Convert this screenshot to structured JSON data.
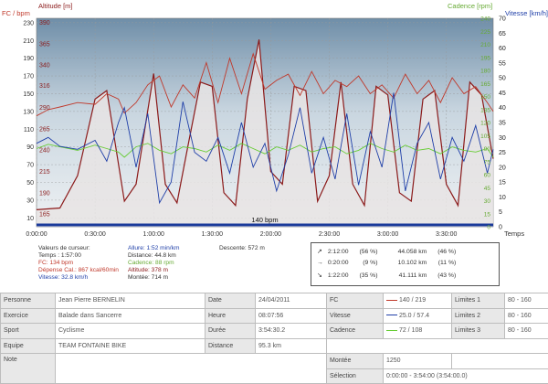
{
  "axis_titles": {
    "left_hr": "FC / bpm",
    "altitude": "Altitude [m]",
    "cadence": "Cadence [rpm]",
    "speed": "Vitesse [km/h]",
    "time": "Temps"
  },
  "chart_data": {
    "type": "line",
    "x_ticks": [
      "0:00:00",
      "0:30:00",
      "1:00:00",
      "1:30:00",
      "2:00:00",
      "2:30:00",
      "3:00:00",
      "3:30:00"
    ],
    "hr_ticks": [
      "10",
      "30",
      "50",
      "70",
      "90",
      "110",
      "130",
      "150",
      "170",
      "190",
      "210",
      "230"
    ],
    "alt_ticks": [
      "165",
      "190",
      "215",
      "240",
      "265",
      "290",
      "316",
      "340",
      "365",
      "390"
    ],
    "cad_ticks": [
      "0",
      "15",
      "30",
      "45",
      "60",
      "75",
      "90",
      "105",
      "120",
      "135",
      "150",
      "165",
      "180",
      "195",
      "210",
      "225",
      "240"
    ],
    "speed_ticks": [
      "0",
      "5",
      "10",
      "15",
      "20",
      "25",
      "30",
      "35",
      "40",
      "45",
      "50",
      "55",
      "60",
      "65",
      "70"
    ],
    "hr_reference_label": "140 bpm",
    "cursor_hr": 134,
    "series": [
      {
        "name": "FC",
        "color": "#c0392b",
        "x_h": [
          0,
          0.1,
          0.2,
          0.35,
          0.5,
          0.6,
          0.7,
          0.75,
          0.85,
          0.95,
          1.05,
          1.15,
          1.25,
          1.35,
          1.45,
          1.55,
          1.65,
          1.75,
          1.85,
          1.95,
          2.05,
          2.15,
          2.25,
          2.35,
          2.45,
          2.55,
          2.65,
          2.75,
          2.85,
          2.95,
          3.05,
          3.15,
          3.25,
          3.35,
          3.45,
          3.55,
          3.65,
          3.75,
          3.85,
          3.9
        ],
        "y": [
          125,
          132,
          135,
          140,
          138,
          150,
          144,
          128,
          140,
          160,
          170,
          135,
          160,
          145,
          185,
          140,
          190,
          150,
          195,
          155,
          165,
          172,
          148,
          175,
          150,
          165,
          158,
          170,
          150,
          160,
          145,
          172,
          150,
          165,
          140,
          168,
          150,
          158,
          140,
          130
        ]
      },
      {
        "name": "Vitesse",
        "color": "#1f3fa8",
        "x_h": [
          0,
          0.1,
          0.2,
          0.35,
          0.5,
          0.6,
          0.7,
          0.75,
          0.85,
          0.95,
          1.05,
          1.15,
          1.25,
          1.35,
          1.45,
          1.55,
          1.65,
          1.75,
          1.85,
          1.95,
          2.05,
          2.15,
          2.25,
          2.35,
          2.45,
          2.55,
          2.65,
          2.75,
          2.85,
          2.95,
          3.05,
          3.15,
          3.25,
          3.35,
          3.45,
          3.55,
          3.65,
          3.75,
          3.85,
          3.9
        ],
        "y": [
          28,
          30,
          27,
          26,
          29,
          22,
          35,
          40,
          20,
          38,
          8,
          15,
          42,
          25,
          22,
          30,
          18,
          35,
          20,
          28,
          12,
          24,
          40,
          18,
          30,
          16,
          38,
          14,
          32,
          20,
          45,
          12,
          28,
          35,
          16,
          30,
          22,
          34,
          18,
          26
        ]
      },
      {
        "name": "Cadence",
        "color": "#66cc33",
        "x_h": [
          0,
          0.1,
          0.2,
          0.35,
          0.5,
          0.6,
          0.7,
          0.75,
          0.85,
          0.95,
          1.05,
          1.15,
          1.25,
          1.35,
          1.45,
          1.55,
          1.65,
          1.75,
          1.85,
          1.95,
          2.05,
          2.15,
          2.25,
          2.35,
          2.45,
          2.55,
          2.65,
          2.75,
          2.85,
          2.95,
          3.05,
          3.15,
          3.25,
          3.35,
          3.45,
          3.55,
          3.65,
          3.75,
          3.85,
          3.9
        ],
        "y": [
          90,
          95,
          92,
          88,
          94,
          90,
          86,
          80,
          92,
          96,
          88,
          84,
          92,
          90,
          86,
          94,
          88,
          96,
          90,
          84,
          92,
          88,
          94,
          86,
          90,
          92,
          84,
          88,
          96,
          90,
          86,
          94,
          88,
          90,
          84,
          92,
          88,
          86,
          90,
          80
        ]
      },
      {
        "name": "Altitude",
        "color": "#8b1a1a",
        "x_h": [
          0,
          0.2,
          0.35,
          0.5,
          0.6,
          0.75,
          0.85,
          1.0,
          1.1,
          1.2,
          1.3,
          1.4,
          1.5,
          1.6,
          1.7,
          1.8,
          1.9,
          2.0,
          2.1,
          2.2,
          2.3,
          2.4,
          2.5,
          2.6,
          2.7,
          2.8,
          2.9,
          3.0,
          3.1,
          3.2,
          3.3,
          3.4,
          3.5,
          3.6,
          3.7,
          3.8,
          3.9
        ],
        "y": [
          170,
          172,
          210,
          300,
          310,
          180,
          200,
          330,
          200,
          178,
          250,
          320,
          315,
          190,
          175,
          300,
          370,
          215,
          200,
          315,
          310,
          180,
          210,
          320,
          200,
          175,
          315,
          305,
          190,
          180,
          300,
          310,
          200,
          175,
          320,
          305,
          230
        ]
      }
    ],
    "xlim_h": [
      0,
      3.9
    ],
    "hr_lim": [
      0,
      235
    ],
    "alt_lim": [
      150,
      395
    ],
    "cad_lim": [
      0,
      240
    ],
    "speed_lim": [
      0,
      70
    ]
  },
  "cursor_info": {
    "col1": [
      "Valeurs de curseur:",
      "Temps : 1:57:00",
      "FC: 134 bpm",
      "Dépense Cal.: 867 kcal/60min",
      "Vitesse: 32.8 km/h"
    ],
    "col2": [
      "Allure: 1:52 min/km",
      "Distance: 44.8 km",
      "Cadence: 88 rpm",
      "Altitude: 378 m",
      "Montée: 714 m"
    ],
    "col3": [
      "Descente: 572 m"
    ]
  },
  "zones": [
    {
      "arrow": "↗",
      "time": "2:12:00",
      "pct": "(56 %)",
      "dist": "44.058 km",
      "dpct": "(46 %)"
    },
    {
      "arrow": "→",
      "time": "0:20:00",
      "pct": "(9 %)",
      "dist": "10.102 km",
      "dpct": "(11 %)"
    },
    {
      "arrow": "↘",
      "time": "1:22:00",
      "pct": "(35 %)",
      "dist": "41.111 km",
      "dpct": "(43 %)"
    }
  ],
  "table": {
    "personne_label": "Personne",
    "personne": "Jean Pierre BERNELIN",
    "date_label": "Date",
    "date": "24/04/2011",
    "fc_label": "FC",
    "fc": "140 / 219",
    "lim1_label": "Limites 1",
    "lim1": "80 - 160",
    "exercice_label": "Exercice",
    "exercice": "Balade dans Sancerre",
    "heure_label": "Heure",
    "heure": "08:07:56",
    "vitesse_label": "Vitesse",
    "vitesse": "25.0 / 57.4",
    "lim2_label": "Limites 2",
    "lim2": "80 - 160",
    "sport_label": "Sport",
    "sport": "Cyclisme",
    "duree_label": "Durée",
    "duree": "3:54:30.2",
    "cadence_label": "Cadence",
    "cadence": "72 / 108",
    "lim3_label": "Limites 3",
    "lim3": "80 - 160",
    "equipe_label": "Equipe",
    "equipe": "TEAM FONTAINE BIKE",
    "distance_label": "Distance",
    "distance": "95.3 km",
    "note_label": "Note",
    "montee_label": "Montée",
    "montee": "1250",
    "selection_label": "Sélection",
    "selection": "0:00:00 - 3:54:00 (3:54:00.0)"
  },
  "colors": {
    "fc": "#c0392b",
    "speed": "#1f3fa8",
    "cadence": "#66cc33",
    "altitude": "#8b1a1a"
  }
}
